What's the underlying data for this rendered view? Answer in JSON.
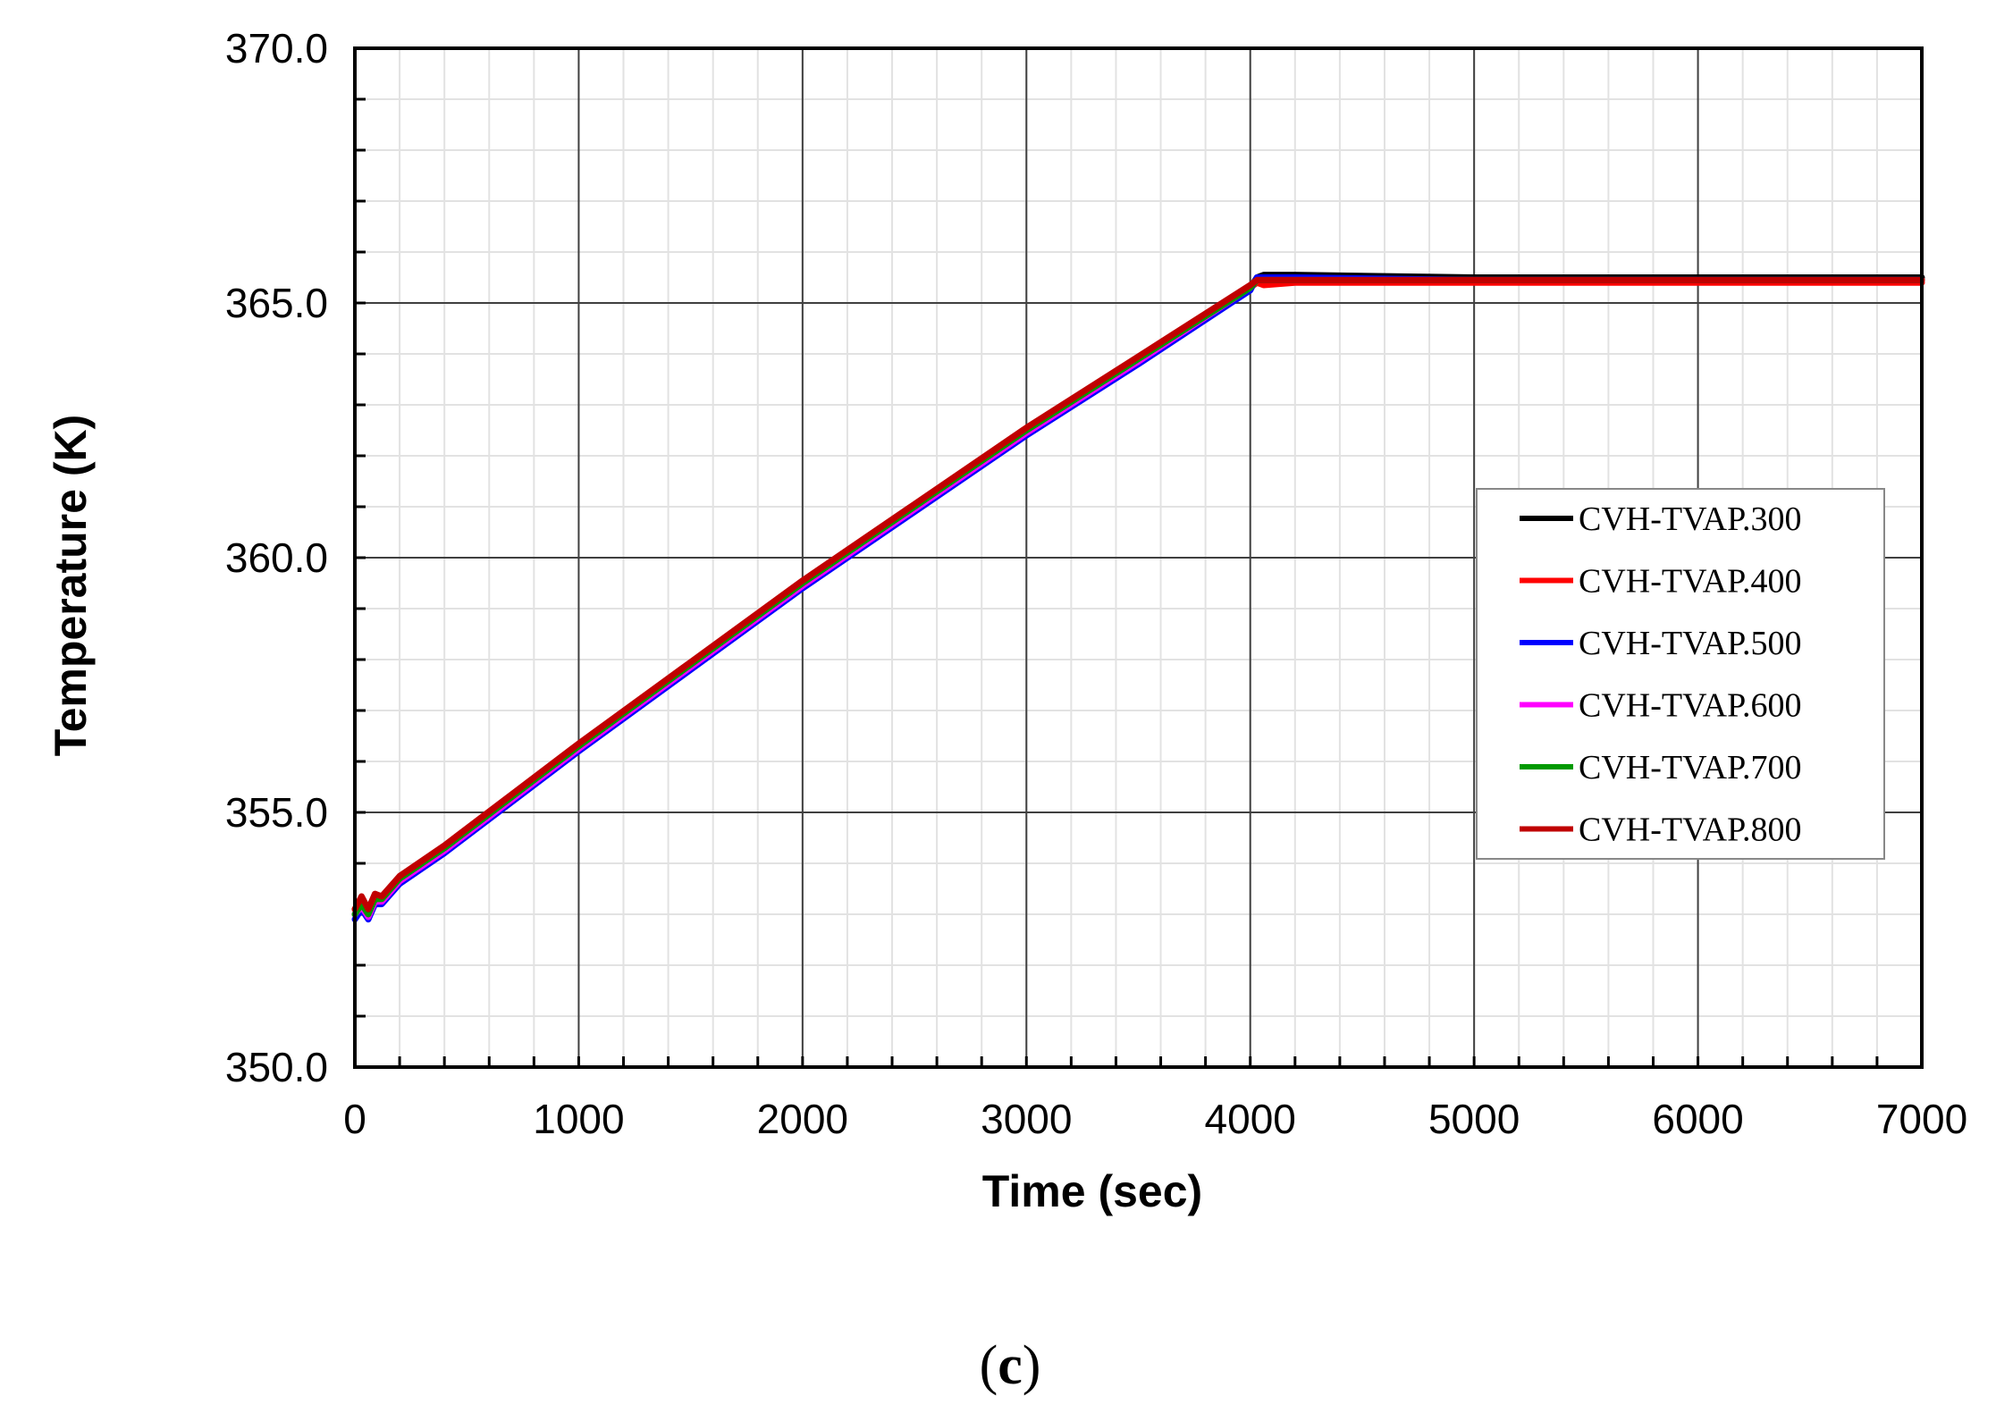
{
  "panel_label": {
    "open": "(",
    "letter": "c",
    "close": ")"
  },
  "chart_data": {
    "type": "line",
    "title": "",
    "xlabel": "Time (sec)",
    "ylabel": "Temperature (K)",
    "xlim": [
      0,
      7000
    ],
    "ylim": [
      350.0,
      370.0
    ],
    "x_major_ticks": [
      0,
      1000,
      2000,
      3000,
      4000,
      5000,
      6000,
      7000
    ],
    "x_tick_labels": [
      "0",
      "1000",
      "2000",
      "3000",
      "4000",
      "5000",
      "6000",
      "7000"
    ],
    "x_minor_step": 200,
    "y_major_ticks": [
      350.0,
      355.0,
      360.0,
      365.0,
      370.0
    ],
    "y_tick_labels": [
      "350.0",
      "355.0",
      "360.0",
      "365.0",
      "370.0"
    ],
    "y_minor_step": 1.0,
    "grid": true,
    "legend_position": "right",
    "series": [
      {
        "name": "CVH-TVAP.300",
        "color": "#000000",
        "x": [
          0,
          30,
          60,
          90,
          120,
          200,
          400,
          700,
          1000,
          1500,
          2000,
          2500,
          3000,
          3500,
          4000,
          4030,
          4060,
          4200,
          5000,
          6000,
          7000
        ],
        "y": [
          353.0,
          353.2,
          353.0,
          353.3,
          353.3,
          353.7,
          354.3,
          355.3,
          356.3,
          357.9,
          359.5,
          361.0,
          362.5,
          363.9,
          365.3,
          365.5,
          365.55,
          365.55,
          365.5,
          365.5,
          365.5
        ]
      },
      {
        "name": "CVH-TVAP.400",
        "color": "#ff0000",
        "x": [
          0,
          30,
          60,
          90,
          120,
          200,
          400,
          700,
          1000,
          1500,
          2000,
          2500,
          3000,
          3500,
          4000,
          4030,
          4060,
          4200,
          5000,
          6000,
          7000
        ],
        "y": [
          353.1,
          353.3,
          353.0,
          353.4,
          353.3,
          353.7,
          354.3,
          355.3,
          356.3,
          357.9,
          359.5,
          361.0,
          362.5,
          363.9,
          365.3,
          365.4,
          365.35,
          365.4,
          365.4,
          365.4,
          365.4
        ]
      },
      {
        "name": "CVH-TVAP.500",
        "color": "#0000ff",
        "x": [
          0,
          30,
          60,
          90,
          120,
          200,
          400,
          700,
          1000,
          1500,
          2000,
          2500,
          3000,
          3500,
          4000,
          4030,
          4060,
          4200,
          5000,
          6000,
          7000
        ],
        "y": [
          352.9,
          353.1,
          352.9,
          353.2,
          353.2,
          353.6,
          354.2,
          355.2,
          356.2,
          357.8,
          359.4,
          360.9,
          362.4,
          363.8,
          365.25,
          365.5,
          365.5,
          365.5,
          365.45,
          365.45,
          365.45
        ]
      },
      {
        "name": "CVH-TVAP.600",
        "color": "#ff00ff",
        "x": [
          0,
          30,
          60,
          90,
          120,
          200,
          400,
          700,
          1000,
          1500,
          2000,
          2500,
          3000,
          3500,
          4000,
          4030,
          4060,
          4200,
          5000,
          6000,
          7000
        ],
        "y": [
          353.0,
          353.15,
          352.95,
          353.25,
          353.25,
          353.65,
          354.25,
          355.25,
          356.25,
          357.85,
          359.45,
          360.95,
          362.45,
          363.85,
          365.3,
          365.45,
          365.45,
          365.45,
          365.45,
          365.45,
          365.45
        ]
      },
      {
        "name": "CVH-TVAP.700",
        "color": "#009900",
        "x": [
          0,
          30,
          60,
          90,
          120,
          200,
          400,
          700,
          1000,
          1500,
          2000,
          2500,
          3000,
          3500,
          4000,
          4030,
          4060,
          4200,
          5000,
          6000,
          7000
        ],
        "y": [
          353.0,
          353.2,
          353.0,
          353.3,
          353.3,
          353.7,
          354.3,
          355.3,
          356.3,
          357.9,
          359.5,
          361.0,
          362.5,
          363.9,
          365.3,
          365.45,
          365.45,
          365.45,
          365.45,
          365.45,
          365.45
        ]
      },
      {
        "name": "CVH-TVAP.800",
        "color": "#c00000",
        "x": [
          0,
          30,
          60,
          90,
          120,
          200,
          400,
          700,
          1000,
          1500,
          2000,
          2500,
          3000,
          3500,
          4000,
          4030,
          4060,
          4200,
          5000,
          6000,
          7000
        ],
        "y": [
          353.1,
          353.35,
          353.1,
          353.4,
          353.35,
          353.75,
          354.35,
          355.35,
          356.35,
          357.95,
          359.55,
          361.05,
          362.55,
          363.95,
          365.35,
          365.45,
          365.45,
          365.45,
          365.45,
          365.45,
          365.45
        ]
      }
    ]
  }
}
